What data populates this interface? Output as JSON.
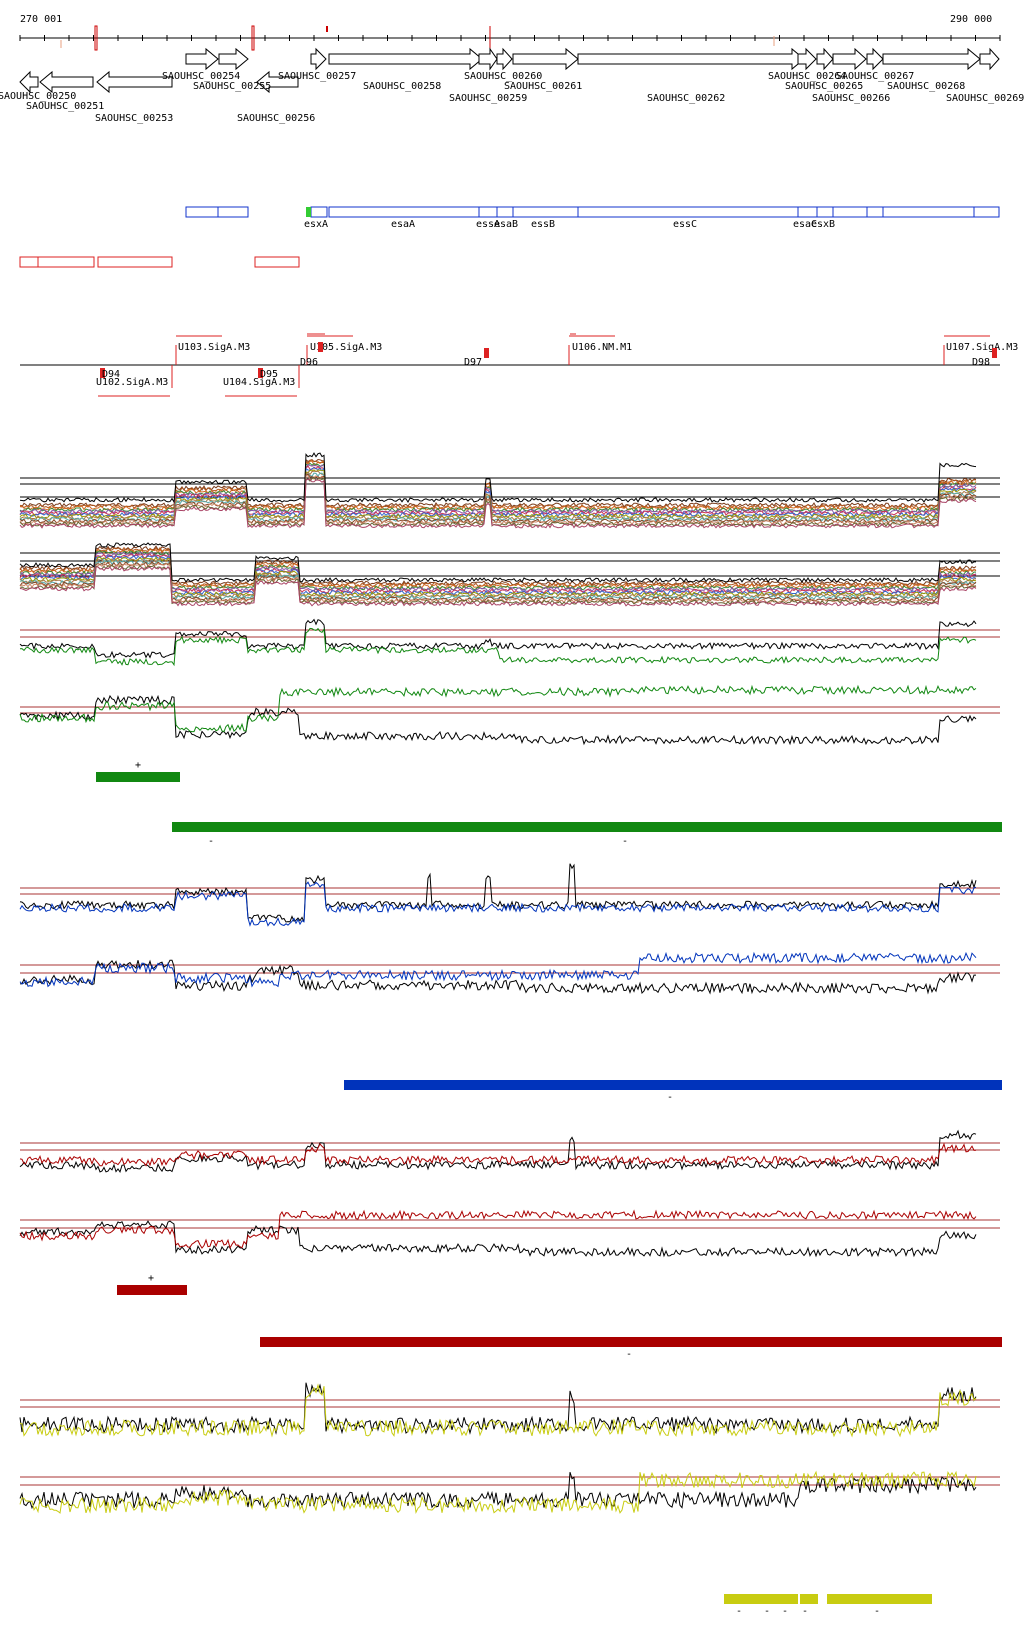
{
  "coordinates": {
    "start": "270 001",
    "end": "290 000"
  },
  "genes": [
    {
      "id": "SAOUHSC_00250",
      "label": "SAOUHSC_00250",
      "dir": "rev"
    },
    {
      "id": "SAOUHSC_00251",
      "label": "SAOUHSC_00251",
      "dir": "rev"
    },
    {
      "id": "SAOUHSC_00253",
      "label": "SAOUHSC_00253",
      "dir": "rev"
    },
    {
      "id": "SAOUHSC_00254",
      "label": "SAOUHSC_00254",
      "dir": "fwd"
    },
    {
      "id": "SAOUHSC_00255",
      "label": "SAOUHSC_00255",
      "dir": "fwd"
    },
    {
      "id": "SAOUHSC_00256",
      "label": "SAOUHSC_00256",
      "dir": "rev"
    },
    {
      "id": "SAOUHSC_00257",
      "label": "SAOUHSC_00257",
      "dir": "fwd"
    },
    {
      "id": "SAOUHSC_00258",
      "label": "SAOUHSC_00258",
      "dir": "fwd"
    },
    {
      "id": "SAOUHSC_00259",
      "label": "SAOUHSC_00259",
      "dir": "fwd"
    },
    {
      "id": "SAOUHSC_00260",
      "label": "SAOUHSC_00260",
      "dir": "fwd"
    },
    {
      "id": "SAOUHSC_00261",
      "label": "SAOUHSC_00261",
      "dir": "fwd"
    },
    {
      "id": "SAOUHSC_00262",
      "label": "SAOUHSC_00262",
      "dir": "fwd"
    },
    {
      "id": "SAOUHSC_00264",
      "label": "SAOUHSC_00264",
      "dir": "fwd"
    },
    {
      "id": "SAOUHSC_00265",
      "label": "SAOUHSC_00265",
      "dir": "fwd"
    },
    {
      "id": "SAOUHSC_00266",
      "label": "SAOUHSC_00266",
      "dir": "fwd"
    },
    {
      "id": "SAOUHSC_00267",
      "label": "SAOUHSC_00267",
      "dir": "fwd"
    },
    {
      "id": "SAOUHSC_00268",
      "label": "SAOUHSC_00268",
      "dir": "fwd"
    },
    {
      "id": "SAOUHSC_00269",
      "label": "SAOUHSC_00269",
      "dir": "fwd"
    }
  ],
  "blue_track_labels": [
    "esxA",
    "esaA",
    "essA",
    "esaB",
    "essB",
    "essC",
    "esaC",
    "esxB"
  ],
  "promoters": {
    "up": [
      "U103.SigA.M3",
      "U105.SigA.M3",
      "U106.NM.M1",
      "U107.SigA.M3"
    ],
    "down": [
      "U102.SigA.M3",
      "U104.SigA.M3"
    ],
    "terminators": [
      "D94",
      "D95",
      "D96",
      "D97",
      "D98"
    ]
  },
  "strand_labels": {
    "plus": "+",
    "minus": "-"
  },
  "colors": {
    "gene_outline": "#000000",
    "feature_blue": "#1133cc",
    "feature_red": "#dd2222",
    "green": "#118811",
    "blue": "#0033bb",
    "red": "#aa0000",
    "yellow": "#c8cc11",
    "black": "#000000",
    "threshold": "#aa3333"
  }
}
